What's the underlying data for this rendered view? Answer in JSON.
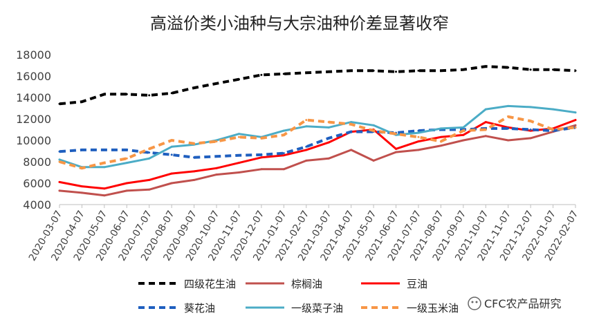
{
  "chart_data": {
    "type": "line",
    "title": "高溢价类小油种与大宗油种价差显著收窄",
    "xlabel": "",
    "ylabel": "",
    "ylim": [
      4000,
      18000
    ],
    "y_ticks": [
      4000,
      6000,
      8000,
      10000,
      12000,
      14000,
      16000,
      18000
    ],
    "x_ticks": [
      "2020-03-07",
      "2020-04-07",
      "2020-05-07",
      "2020-06-07",
      "2020-07-07",
      "2020-08-07",
      "2020-09-07",
      "2020-10-07",
      "2020-11-07",
      "2020-12-07",
      "2021-01-07",
      "2021-02-07",
      "2021-03-07",
      "2021-04-07",
      "2021-05-07",
      "2021-06-07",
      "2021-07-07",
      "2021-08-07",
      "2021-09-07",
      "2021-10-07",
      "2021-11-07",
      "2021-12-07",
      "2022-01-07",
      "2022-02-07"
    ],
    "grid": false,
    "legend_position": "bottom",
    "series": [
      {
        "name": "四级花生油",
        "color": "#000000",
        "dash": "dashed",
        "values": [
          13400,
          13600,
          14300,
          14300,
          14200,
          14400,
          14900,
          15300,
          15700,
          16100,
          16200,
          16300,
          16400,
          16500,
          16500,
          16400,
          16500,
          16500,
          16600,
          16900,
          16800,
          16600,
          16600,
          16500
        ]
      },
      {
        "name": "棕榈油",
        "color": "#C0504D",
        "dash": "solid",
        "values": [
          5300,
          5100,
          4850,
          5300,
          5400,
          6000,
          6300,
          6800,
          7000,
          7300,
          7300,
          8100,
          8300,
          9100,
          8100,
          8900,
          9100,
          9500,
          10000,
          10400,
          10000,
          10200,
          10800,
          11400
        ]
      },
      {
        "name": "豆油",
        "color": "#FF0000",
        "dash": "solid",
        "values": [
          6100,
          5700,
          5500,
          6000,
          6300,
          6900,
          7100,
          7400,
          7900,
          8400,
          8600,
          9100,
          9800,
          10800,
          11000,
          9200,
          9900,
          10300,
          10500,
          11700,
          11200,
          10900,
          11100,
          11900
        ]
      },
      {
        "name": "葵花油",
        "color": "#1F5FBF",
        "dash": "dashed",
        "values": [
          8950,
          9100,
          9100,
          9100,
          8850,
          8650,
          8400,
          8500,
          8600,
          8650,
          8800,
          9400,
          10200,
          10800,
          10800,
          10700,
          10900,
          11000,
          11000,
          11100,
          11100,
          11000,
          10900,
          11200
        ]
      },
      {
        "name": "一级菜子油",
        "color": "#4BACC6",
        "dash": "solid",
        "values": [
          8200,
          7500,
          7500,
          7900,
          8300,
          9400,
          9600,
          10000,
          10600,
          10300,
          10900,
          11300,
          11200,
          11700,
          11400,
          10500,
          10700,
          11100,
          11200,
          12900,
          13200,
          13100,
          12900,
          12600
        ]
      },
      {
        "name": "一级玉米油",
        "color": "#F79646",
        "dash": "dashed",
        "values": [
          8000,
          7400,
          7900,
          8300,
          9200,
          10000,
          9700,
          9900,
          10300,
          10200,
          10500,
          11900,
          11700,
          11500,
          10900,
          10600,
          10300,
          9900,
          10900,
          11000,
          12200,
          11800,
          11000,
          11200
        ]
      }
    ]
  },
  "watermark": "CFC农产品研究"
}
